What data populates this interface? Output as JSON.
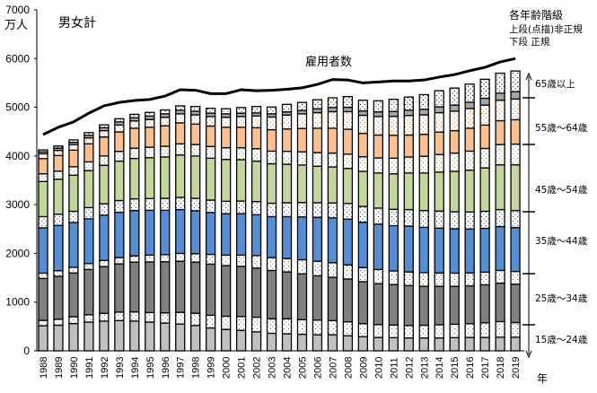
{
  "chart_data": {
    "type": "bar",
    "subtype": "stacked-bar-with-line",
    "title": "男女計",
    "ylabel": "万人",
    "xlabel": "年",
    "ylim": [
      0,
      7000
    ],
    "yticks": [
      0,
      1000,
      2000,
      3000,
      4000,
      5000,
      6000,
      7000
    ],
    "legend_note": [
      "各年齢階級",
      "上段(点描)非正規",
      "下段 正規"
    ],
    "line_label": "雇用者数",
    "categories": [
      "1988",
      "1989",
      "1990",
      "1991",
      "1992",
      "1993",
      "1994",
      "1995",
      "1996",
      "1997",
      "1998",
      "1999",
      "2000",
      "2001",
      "2002",
      "2003",
      "2004",
      "2005",
      "2006",
      "2007",
      "2008",
      "2009",
      "2010",
      "2011",
      "2012",
      "2013",
      "2014",
      "2015",
      "2016",
      "2017",
      "2018",
      "2019"
    ],
    "age_groups": [
      "15歳～24歳",
      "25歳～34歳",
      "35歳～44歳",
      "45歳～54歳",
      "55歳～64歳",
      "65歳以上"
    ],
    "series": [
      {
        "name": "15歳～24歳 正規",
        "group": 0,
        "kind": "regular",
        "color": "#c0c0c0",
        "values": [
          515,
          525,
          560,
          590,
          610,
          620,
          610,
          590,
          570,
          550,
          520,
          470,
          440,
          420,
          390,
          360,
          350,
          340,
          330,
          330,
          310,
          290,
          275,
          270,
          265,
          265,
          265,
          270,
          275,
          275,
          280,
          280
        ]
      },
      {
        "name": "15歳～24歳 非正規",
        "group": 0,
        "kind": "non-regular",
        "color": "#ffffff",
        "values": [
          110,
          125,
          140,
          150,
          160,
          175,
          190,
          195,
          210,
          240,
          250,
          260,
          270,
          285,
          300,
          300,
          310,
          300,
          300,
          290,
          285,
          270,
          265,
          260,
          255,
          260,
          270,
          275,
          280,
          300,
          320,
          300
        ]
      },
      {
        "name": "25歳～34歳 正規",
        "group": 1,
        "kind": "regular",
        "color": "#808080",
        "values": [
          860,
          880,
          900,
          930,
          960,
          990,
          1020,
          1040,
          1050,
          1050,
          1050,
          1050,
          1040,
          1030,
          1010,
          990,
          960,
          940,
          910,
          890,
          880,
          860,
          840,
          830,
          820,
          800,
          790,
          780,
          780,
          780,
          790,
          790
        ]
      },
      {
        "name": "25歳～34歳 非正規",
        "group": 1,
        "kind": "non-regular",
        "color": "#ffffff",
        "values": [
          110,
          115,
          115,
          120,
          125,
          130,
          130,
          140,
          145,
          160,
          175,
          200,
          215,
          230,
          255,
          265,
          275,
          290,
          300,
          300,
          290,
          290,
          290,
          280,
          280,
          280,
          275,
          270,
          265,
          260,
          260,
          260
        ]
      },
      {
        "name": "35歳～44歳 正規",
        "group": 2,
        "kind": "regular",
        "color": "#558ed5",
        "values": [
          930,
          930,
          920,
          920,
          930,
          930,
          930,
          920,
          910,
          900,
          880,
          860,
          850,
          850,
          840,
          840,
          860,
          880,
          900,
          920,
          940,
          930,
          930,
          930,
          940,
          930,
          920,
          910,
          900,
          900,
          900,
          900
        ]
      },
      {
        "name": "35歳～44歳 非正規",
        "group": 2,
        "kind": "non-regular",
        "color": "#ffffff",
        "values": [
          230,
          230,
          230,
          230,
          235,
          240,
          240,
          240,
          245,
          250,
          255,
          255,
          255,
          260,
          270,
          275,
          285,
          295,
          300,
          305,
          320,
          325,
          330,
          335,
          340,
          345,
          350,
          350,
          350,
          350,
          350,
          350
        ]
      },
      {
        "name": "45歳～54歳 正規",
        "group": 3,
        "kind": "regular",
        "color": "#c3d69b",
        "values": [
          720,
          720,
          740,
          760,
          790,
          810,
          830,
          840,
          850,
          870,
          870,
          860,
          860,
          850,
          830,
          810,
          790,
          770,
          750,
          740,
          720,
          720,
          720,
          730,
          750,
          770,
          800,
          830,
          860,
          890,
          920,
          940
        ]
      },
      {
        "name": "45歳～54歳 非正規",
        "group": 3,
        "kind": "non-regular",
        "color": "#ffffff",
        "values": [
          160,
          165,
          175,
          180,
          190,
          200,
          210,
          215,
          220,
          230,
          235,
          240,
          240,
          245,
          255,
          260,
          265,
          270,
          280,
          285,
          295,
          300,
          310,
          320,
          330,
          345,
          360,
          375,
          390,
          400,
          415,
          425
        ]
      },
      {
        "name": "55歳～64歳 正規",
        "group": 4,
        "kind": "regular",
        "color": "#fac090",
        "values": [
          310,
          320,
          340,
          370,
          390,
          400,
          410,
          410,
          420,
          430,
          420,
          420,
          420,
          420,
          430,
          440,
          460,
          480,
          500,
          510,
          510,
          480,
          470,
          470,
          450,
          450,
          460,
          460,
          470,
          480,
          490,
          500
        ]
      },
      {
        "name": "55歳～64歳 非正規",
        "group": 4,
        "kind": "non-regular",
        "color": "#ffffff",
        "values": [
          100,
          105,
          110,
          120,
          130,
          140,
          150,
          160,
          175,
          185,
          190,
          195,
          205,
          220,
          240,
          260,
          285,
          300,
          320,
          340,
          360,
          370,
          380,
          390,
          400,
          400,
          400,
          400,
          405,
          410,
          420,
          425
        ]
      },
      {
        "name": "65歳以上 正規",
        "group": 5,
        "kind": "regular",
        "color": "#a6a6a6",
        "values": [
          40,
          45,
          50,
          55,
          60,
          65,
          65,
          70,
          70,
          75,
          75,
          70,
          70,
          70,
          65,
          65,
          65,
          70,
          80,
          85,
          90,
          90,
          95,
          100,
          110,
          115,
          120,
          125,
          130,
          140,
          145,
          150
        ]
      },
      {
        "name": "65歳以上 非正規",
        "group": 5,
        "kind": "non-regular",
        "color": "#ffffff",
        "values": [
          40,
          45,
          50,
          55,
          60,
          65,
          70,
          75,
          80,
          90,
          95,
          100,
          105,
          115,
          130,
          140,
          155,
          165,
          185,
          200,
          220,
          220,
          230,
          250,
          270,
          300,
          330,
          350,
          370,
          390,
          410,
          425
        ]
      }
    ],
    "line_series": {
      "name": "雇用者数",
      "values": [
        4440,
        4590,
        4700,
        4880,
        5030,
        5100,
        5140,
        5160,
        5230,
        5360,
        5350,
        5280,
        5280,
        5360,
        5340,
        5350,
        5370,
        5400,
        5470,
        5570,
        5560,
        5500,
        5520,
        5540,
        5540,
        5560,
        5620,
        5670,
        5750,
        5820,
        5930,
        6000
      ]
    },
    "grid": false,
    "right_axis_labels": [
      "65歳以上",
      "55歳～64歳",
      "45歳～54歳",
      "35歳～44歳",
      "25歳～34歳",
      "15歳～24歳"
    ]
  }
}
